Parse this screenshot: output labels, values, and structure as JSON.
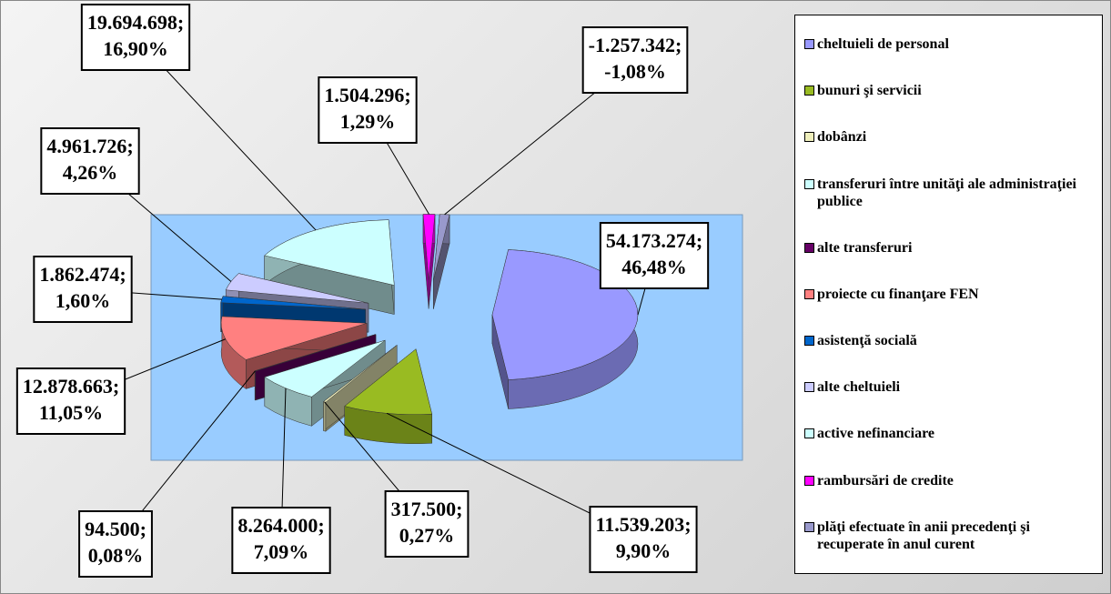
{
  "chart_data": {
    "type": "pie",
    "categories": [
      "cheltuieli de personal",
      "bunuri şi servicii",
      "dobânzi",
      "transferuri între unităţi ale administraţiei publice",
      "alte transferuri",
      "proiecte cu finanţare FEN",
      "asistenţă socială",
      "alte cheltuieli",
      "active nefinanciare",
      "rambursări de credite",
      "plăţi efectuate în anii precedenţi şi recuperate în anul curent"
    ],
    "values": [
      54173274,
      11539203,
      317500,
      8264000,
      94500,
      12878663,
      1862474,
      4961726,
      19694698,
      1504296,
      -1257342
    ],
    "value_labels": [
      "54.173.274;",
      "11.539.203;",
      "317.500;",
      "8.264.000;",
      "94.500;",
      "12.878.663;",
      "1.862.474;",
      "4.961.726;",
      "19.694.698;",
      "1.504.296;",
      "-1.257.342;"
    ],
    "percents": [
      46.48,
      9.9,
      0.27,
      7.09,
      0.08,
      11.05,
      1.6,
      4.26,
      16.9,
      1.29,
      -1.08
    ],
    "percent_labels": [
      "46,48%",
      "9,90%",
      "0,27%",
      "7,09%",
      "0,08%",
      "11,05%",
      "1,60%",
      "4,26%",
      "16,90%",
      "1,29%",
      "-1,08%"
    ],
    "colors": [
      "#9999ff",
      "#99bb22",
      "#eeeebb",
      "#ccffff",
      "#660066",
      "#ff8080",
      "#0066cc",
      "#ccccff",
      "#ccffff",
      "#ff00ff",
      "#9999cc"
    ],
    "legend": "right"
  }
}
